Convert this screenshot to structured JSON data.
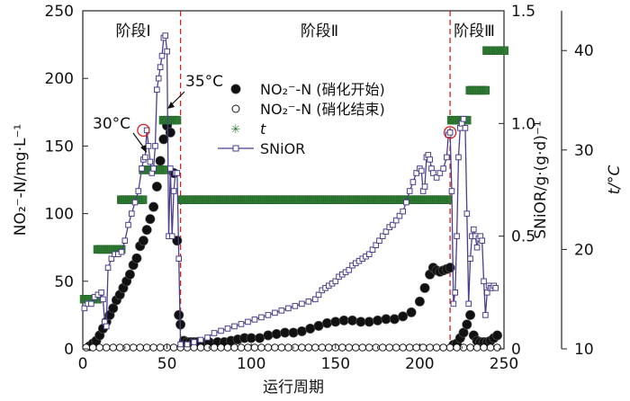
{
  "chart_data": {
    "type": "scatter",
    "x_axis": {
      "label": "运行周期",
      "min": 0,
      "max": 250,
      "ticks": [
        0,
        50,
        100,
        150,
        200,
        250
      ]
    },
    "y_left": {
      "label": "NO₂⁻-N/mg·L⁻¹",
      "min": 0,
      "max": 250,
      "ticks": [
        0,
        50,
        100,
        150,
        200,
        250
      ]
    },
    "y_sniOR": {
      "label": "SNiOR/g·(g·d)⁻¹",
      "min": 0,
      "max": 1.5,
      "ticks": [
        "0",
        "0.5",
        "1.0",
        "1.5"
      ],
      "tick_values": [
        0,
        0.5,
        1.0,
        1.5
      ]
    },
    "y_temp": {
      "label": "t/°C",
      "min": 10,
      "max": 44,
      "ticks": [
        10,
        20,
        30,
        40
      ]
    },
    "phases": [
      {
        "label": "阶段Ⅰ",
        "start": 0,
        "end": 58
      },
      {
        "label": "阶段Ⅱ",
        "start": 58,
        "end": 218
      },
      {
        "label": "阶段Ⅲ",
        "start": 218,
        "end": 250
      }
    ],
    "phase_boundaries": [
      58,
      218
    ],
    "annotations": [
      {
        "text": "30°C",
        "x": 36,
        "y": 161
      },
      {
        "text": "35°C",
        "x": 50,
        "y": 176
      }
    ],
    "legend": [
      {
        "label": "NO₂⁻-N (硝化开始)",
        "marker": "filled-circle"
      },
      {
        "label": "NO₂⁻-N (硝化结束)",
        "marker": "open-circle"
      },
      {
        "label": "t",
        "marker": "star"
      },
      {
        "label": "SNiOR",
        "marker": "open-square-line"
      }
    ],
    "series": [
      {
        "name": "NO₂⁻-N (硝化开始)",
        "axis": "left",
        "points": [
          [
            4,
            2
          ],
          [
            6,
            4
          ],
          [
            8,
            6
          ],
          [
            10,
            10
          ],
          [
            12,
            15
          ],
          [
            14,
            20
          ],
          [
            16,
            25
          ],
          [
            18,
            30
          ],
          [
            20,
            36
          ],
          [
            22,
            40
          ],
          [
            24,
            45
          ],
          [
            26,
            50
          ],
          [
            28,
            55
          ],
          [
            30,
            62
          ],
          [
            32,
            67
          ],
          [
            34,
            76
          ],
          [
            36,
            80
          ],
          [
            38,
            88
          ],
          [
            40,
            96
          ],
          [
            42,
            105
          ],
          [
            44,
            120
          ],
          [
            46,
            139
          ],
          [
            48,
            155
          ],
          [
            50,
            165
          ],
          [
            52,
            160
          ],
          [
            54,
            130
          ],
          [
            56,
            80
          ],
          [
            57,
            25
          ],
          [
            58,
            18
          ],
          [
            60,
            6
          ],
          [
            62,
            5
          ],
          [
            64,
            5
          ],
          [
            66,
            5
          ],
          [
            68,
            5
          ],
          [
            70,
            5
          ],
          [
            75,
            5
          ],
          [
            80,
            5
          ],
          [
            84,
            5
          ],
          [
            88,
            6
          ],
          [
            92,
            7
          ],
          [
            96,
            8
          ],
          [
            100,
            8
          ],
          [
            105,
            8
          ],
          [
            110,
            10
          ],
          [
            115,
            11
          ],
          [
            120,
            12
          ],
          [
            125,
            12
          ],
          [
            130,
            13
          ],
          [
            135,
            15
          ],
          [
            140,
            17
          ],
          [
            145,
            19
          ],
          [
            150,
            20
          ],
          [
            155,
            21
          ],
          [
            160,
            21
          ],
          [
            165,
            20
          ],
          [
            170,
            20
          ],
          [
            175,
            21
          ],
          [
            180,
            22
          ],
          [
            185,
            22
          ],
          [
            190,
            24
          ],
          [
            195,
            27
          ],
          [
            200,
            35
          ],
          [
            203,
            45
          ],
          [
            206,
            55
          ],
          [
            208,
            60
          ],
          [
            210,
            58
          ],
          [
            212,
            57
          ],
          [
            214,
            58
          ],
          [
            216,
            59
          ],
          [
            218,
            60
          ],
          [
            220,
            3
          ],
          [
            222,
            4
          ],
          [
            224,
            8
          ],
          [
            226,
            12
          ],
          [
            228,
            18
          ],
          [
            230,
            25
          ],
          [
            232,
            10
          ],
          [
            234,
            6
          ],
          [
            236,
            5
          ],
          [
            238,
            5
          ],
          [
            240,
            5
          ],
          [
            242,
            6
          ],
          [
            244,
            8
          ],
          [
            246,
            10
          ]
        ]
      },
      {
        "name": "NO₂⁻-N (硝化结束)",
        "axis": "left",
        "points": [
          [
            2,
            1
          ],
          [
            6,
            1
          ],
          [
            10,
            1
          ],
          [
            14,
            1
          ],
          [
            18,
            1
          ],
          [
            22,
            1
          ],
          [
            26,
            1
          ],
          [
            30,
            1
          ],
          [
            34,
            1
          ],
          [
            38,
            1
          ],
          [
            42,
            1
          ],
          [
            46,
            1
          ],
          [
            50,
            1
          ],
          [
            54,
            1
          ],
          [
            58,
            1
          ],
          [
            62,
            1
          ],
          [
            66,
            1
          ],
          [
            70,
            1
          ],
          [
            74,
            1
          ],
          [
            78,
            1
          ],
          [
            82,
            1
          ],
          [
            86,
            1
          ],
          [
            90,
            1
          ],
          [
            94,
            1
          ],
          [
            98,
            1
          ],
          [
            102,
            1
          ],
          [
            106,
            1
          ],
          [
            110,
            1
          ],
          [
            114,
            1
          ],
          [
            118,
            1
          ],
          [
            122,
            1
          ],
          [
            126,
            1
          ],
          [
            130,
            1
          ],
          [
            134,
            1
          ],
          [
            138,
            1
          ],
          [
            142,
            1
          ],
          [
            146,
            1
          ],
          [
            150,
            1
          ],
          [
            154,
            1
          ],
          [
            158,
            1
          ],
          [
            162,
            1
          ],
          [
            166,
            1
          ],
          [
            170,
            1
          ],
          [
            174,
            1
          ],
          [
            178,
            1
          ],
          [
            182,
            1
          ],
          [
            186,
            1
          ],
          [
            190,
            1
          ],
          [
            194,
            1
          ],
          [
            198,
            1
          ],
          [
            202,
            1
          ],
          [
            206,
            1
          ],
          [
            210,
            1
          ],
          [
            214,
            1
          ],
          [
            218,
            1
          ],
          [
            222,
            1
          ],
          [
            226,
            1
          ],
          [
            230,
            1
          ],
          [
            234,
            1
          ],
          [
            238,
            1
          ],
          [
            242,
            1
          ],
          [
            246,
            1
          ]
        ]
      },
      {
        "name": "t",
        "axis": "temp",
        "segments": [
          {
            "x0": 0,
            "x1": 10,
            "y": 15
          },
          {
            "x0": 8,
            "x1": 24,
            "y": 20
          },
          {
            "x0": 22,
            "x1": 37,
            "y": 25
          },
          {
            "x0": 35,
            "x1": 50,
            "y": 28
          },
          {
            "x0": 47,
            "x1": 57,
            "y": 33
          },
          {
            "x0": 58,
            "x1": 218,
            "y": 25
          },
          {
            "x0": 218,
            "x1": 229,
            "y": 33
          },
          {
            "x0": 229,
            "x1": 240,
            "y": 36
          },
          {
            "x0": 239,
            "x1": 251,
            "y": 40
          }
        ]
      },
      {
        "name": "SNiOR",
        "axis": "sniOR",
        "points": [
          [
            1,
            0.18
          ],
          [
            3,
            0.2
          ],
          [
            5,
            0.2
          ],
          [
            7,
            0.23
          ],
          [
            9,
            0.24
          ],
          [
            11,
            0.25
          ],
          [
            12,
            0.22
          ],
          [
            13,
            0.12
          ],
          [
            14,
            0.1
          ],
          [
            15,
            0.36
          ],
          [
            17,
            0.4
          ],
          [
            19,
            0.42
          ],
          [
            21,
            0.42
          ],
          [
            23,
            0.43
          ],
          [
            25,
            0.48
          ],
          [
            27,
            0.55
          ],
          [
            29,
            0.6
          ],
          [
            31,
            0.65
          ],
          [
            33,
            0.7
          ],
          [
            35,
            0.8
          ],
          [
            36,
            0.84
          ],
          [
            37,
            0.85
          ],
          [
            38,
            0.97
          ],
          [
            39,
            0.9
          ],
          [
            40,
            0.83
          ],
          [
            41,
            0.78
          ],
          [
            42,
            0.8
          ],
          [
            43,
            0.9
          ],
          [
            44,
            1.15
          ],
          [
            45,
            1.2
          ],
          [
            46,
            1.25
          ],
          [
            47,
            1.3
          ],
          [
            48,
            1.38
          ],
          [
            49,
            1.39
          ],
          [
            50,
            1.32
          ],
          [
            51,
            0.5
          ],
          [
            52,
            0.8
          ],
          [
            53,
            0.5
          ],
          [
            54,
            0.7
          ],
          [
            55,
            0.78
          ],
          [
            56,
            0.78
          ],
          [
            57,
            0.4
          ],
          [
            58,
            0.02
          ],
          [
            62,
            0.02
          ],
          [
            66,
            0.03
          ],
          [
            70,
            0.04
          ],
          [
            74,
            0.05
          ],
          [
            78,
            0.07
          ],
          [
            82,
            0.08
          ],
          [
            86,
            0.09
          ],
          [
            90,
            0.1
          ],
          [
            94,
            0.11
          ],
          [
            98,
            0.12
          ],
          [
            102,
            0.13
          ],
          [
            106,
            0.14
          ],
          [
            110,
            0.15
          ],
          [
            114,
            0.16
          ],
          [
            118,
            0.17
          ],
          [
            122,
            0.18
          ],
          [
            126,
            0.19
          ],
          [
            130,
            0.2
          ],
          [
            134,
            0.21
          ],
          [
            138,
            0.22
          ],
          [
            140,
            0.24
          ],
          [
            142,
            0.26
          ],
          [
            144,
            0.27
          ],
          [
            146,
            0.28
          ],
          [
            148,
            0.29
          ],
          [
            150,
            0.3
          ],
          [
            152,
            0.32
          ],
          [
            154,
            0.33
          ],
          [
            156,
            0.34
          ],
          [
            158,
            0.35
          ],
          [
            160,
            0.37
          ],
          [
            162,
            0.38
          ],
          [
            164,
            0.39
          ],
          [
            166,
            0.4
          ],
          [
            168,
            0.41
          ],
          [
            170,
            0.42
          ],
          [
            172,
            0.44
          ],
          [
            174,
            0.46
          ],
          [
            176,
            0.48
          ],
          [
            178,
            0.5
          ],
          [
            180,
            0.52
          ],
          [
            182,
            0.54
          ],
          [
            184,
            0.55
          ],
          [
            186,
            0.57
          ],
          [
            188,
            0.59
          ],
          [
            190,
            0.61
          ],
          [
            192,
            0.65
          ],
          [
            194,
            0.7
          ],
          [
            196,
            0.74
          ],
          [
            198,
            0.78
          ],
          [
            200,
            0.8
          ],
          [
            201,
            0.79
          ],
          [
            202,
            0.7
          ],
          [
            203,
            0.72
          ],
          [
            204,
            0.85
          ],
          [
            205,
            0.86
          ],
          [
            206,
            0.84
          ],
          [
            207,
            0.8
          ],
          [
            208,
            0.78
          ],
          [
            210,
            0.76
          ],
          [
            212,
            0.78
          ],
          [
            214,
            0.8
          ],
          [
            216,
            0.85
          ],
          [
            217,
            0.95
          ],
          [
            218,
            0.96
          ],
          [
            219,
            0.7
          ],
          [
            220,
            0.2
          ],
          [
            221,
            0.25
          ],
          [
            222,
            0.5
          ],
          [
            223,
            0.85
          ],
          [
            224,
            0.98
          ],
          [
            225,
            1.0
          ],
          [
            226,
            1.02
          ],
          [
            227,
            0.98
          ],
          [
            228,
            0.6
          ],
          [
            229,
            0.2
          ],
          [
            230,
            0.4
          ],
          [
            231,
            0.5
          ],
          [
            232,
            0.53
          ],
          [
            233,
            0.5
          ],
          [
            234,
            0.45
          ],
          [
            235,
            0.49
          ],
          [
            236,
            0.5
          ],
          [
            237,
            0.48
          ],
          [
            238,
            0.3
          ],
          [
            239,
            0.15
          ],
          [
            240,
            0.25
          ],
          [
            241,
            0.28
          ],
          [
            242,
            0.27
          ],
          [
            243,
            0.27
          ],
          [
            244,
            0.28
          ],
          [
            245,
            0.27
          ]
        ]
      }
    ],
    "highlight_circles": [
      {
        "x": 36,
        "y_sniOR": 0.97
      },
      {
        "x": 218,
        "y_sniOR": 0.96
      }
    ]
  }
}
